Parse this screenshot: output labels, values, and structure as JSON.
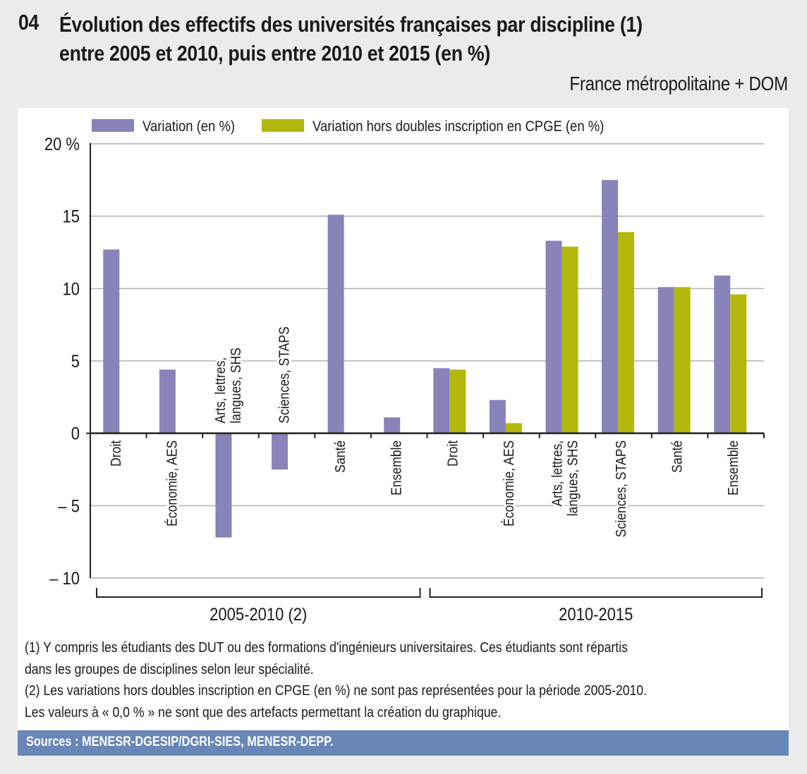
{
  "header": {
    "figure_number": "04",
    "title_line1": "Évolution des effectifs des universités françaises par discipline (1)",
    "title_line2": "entre 2005 et 2010, puis entre 2010 et 2015 (en %)",
    "scope": "France métropolitaine + DOM"
  },
  "colors": {
    "series1": "#8883b8",
    "series2": "#b4b80c",
    "sources_bar": "#6886b8",
    "gridline": "#b0b0b0",
    "axis": "#222222"
  },
  "chart_data": {
    "type": "bar",
    "title": "Évolution des effectifs des universités françaises par discipline (1) entre 2005 et 2010, puis entre 2010 et 2015 (en %)",
    "xlabel": "",
    "ylabel": "",
    "ylim": [
      -10,
      20
    ],
    "yticks": [
      20,
      15,
      10,
      5,
      0,
      -5,
      -10
    ],
    "ytick_labels": [
      "20 %",
      "15",
      "10",
      "5",
      "0",
      "– 5",
      "– 10"
    ],
    "grid": true,
    "legend_position": "top-left",
    "groups": [
      {
        "label": "2005-2010 (2)",
        "categories": [
          "Droit",
          "Économie, AES",
          "Arts, lettres, langues, SHS",
          "Sciences, STAPS",
          "Santé",
          "Ensemble"
        ],
        "category_lines": [
          [
            "Droit"
          ],
          [
            "Économie, AES"
          ],
          [
            "Arts, lettres,",
            "langues, SHS"
          ],
          [
            "Sciences, STAPS"
          ],
          [
            "Santé"
          ],
          [
            "Ensemble"
          ]
        ],
        "series": [
          {
            "name": "Variation (en %)",
            "values": [
              12.7,
              4.4,
              -7.2,
              -2.5,
              15.1,
              1.1
            ]
          }
        ]
      },
      {
        "label": "2010-2015",
        "categories": [
          "Droit",
          "Économie, AES",
          "Arts, lettres, langues, SHS",
          "Sciences, STAPS",
          "Santé",
          "Ensemble"
        ],
        "category_lines": [
          [
            "Droit"
          ],
          [
            "Économie, AES"
          ],
          [
            "Arts, lettres,",
            "langues, SHS"
          ],
          [
            "Sciences, STAPS"
          ],
          [
            "Santé"
          ],
          [
            "Ensemble"
          ]
        ],
        "series": [
          {
            "name": "Variation (en %)",
            "values": [
              4.5,
              2.3,
              13.3,
              17.5,
              10.1,
              10.9
            ]
          },
          {
            "name": "Variation hors doubles inscription en CPGE (en %)",
            "values": [
              4.4,
              0.7,
              12.9,
              13.9,
              10.1,
              9.6
            ]
          }
        ]
      }
    ],
    "legend": [
      {
        "label": "Variation (en %)",
        "color": "#8883b8"
      },
      {
        "label": "Variation hors doubles inscription en CPGE (en %)",
        "color": "#b4b80c"
      }
    ]
  },
  "notes": [
    "(1) Y compris les étudiants des DUT ou des formations d'ingénieurs universitaires. Ces étudiants sont répartis",
    "dans les groupes de disciplines selon leur spécialité.",
    "(2) Les variations hors doubles inscription en CPGE (en %) ne sont pas représentées pour la période 2005-2010.",
    "Les valeurs à « 0,0 % » ne sont que des artefacts permettant la création du graphique."
  ],
  "sources": "Sources : MENESR-DGESIP/DGRI-SIES, MENESR-DEPP."
}
